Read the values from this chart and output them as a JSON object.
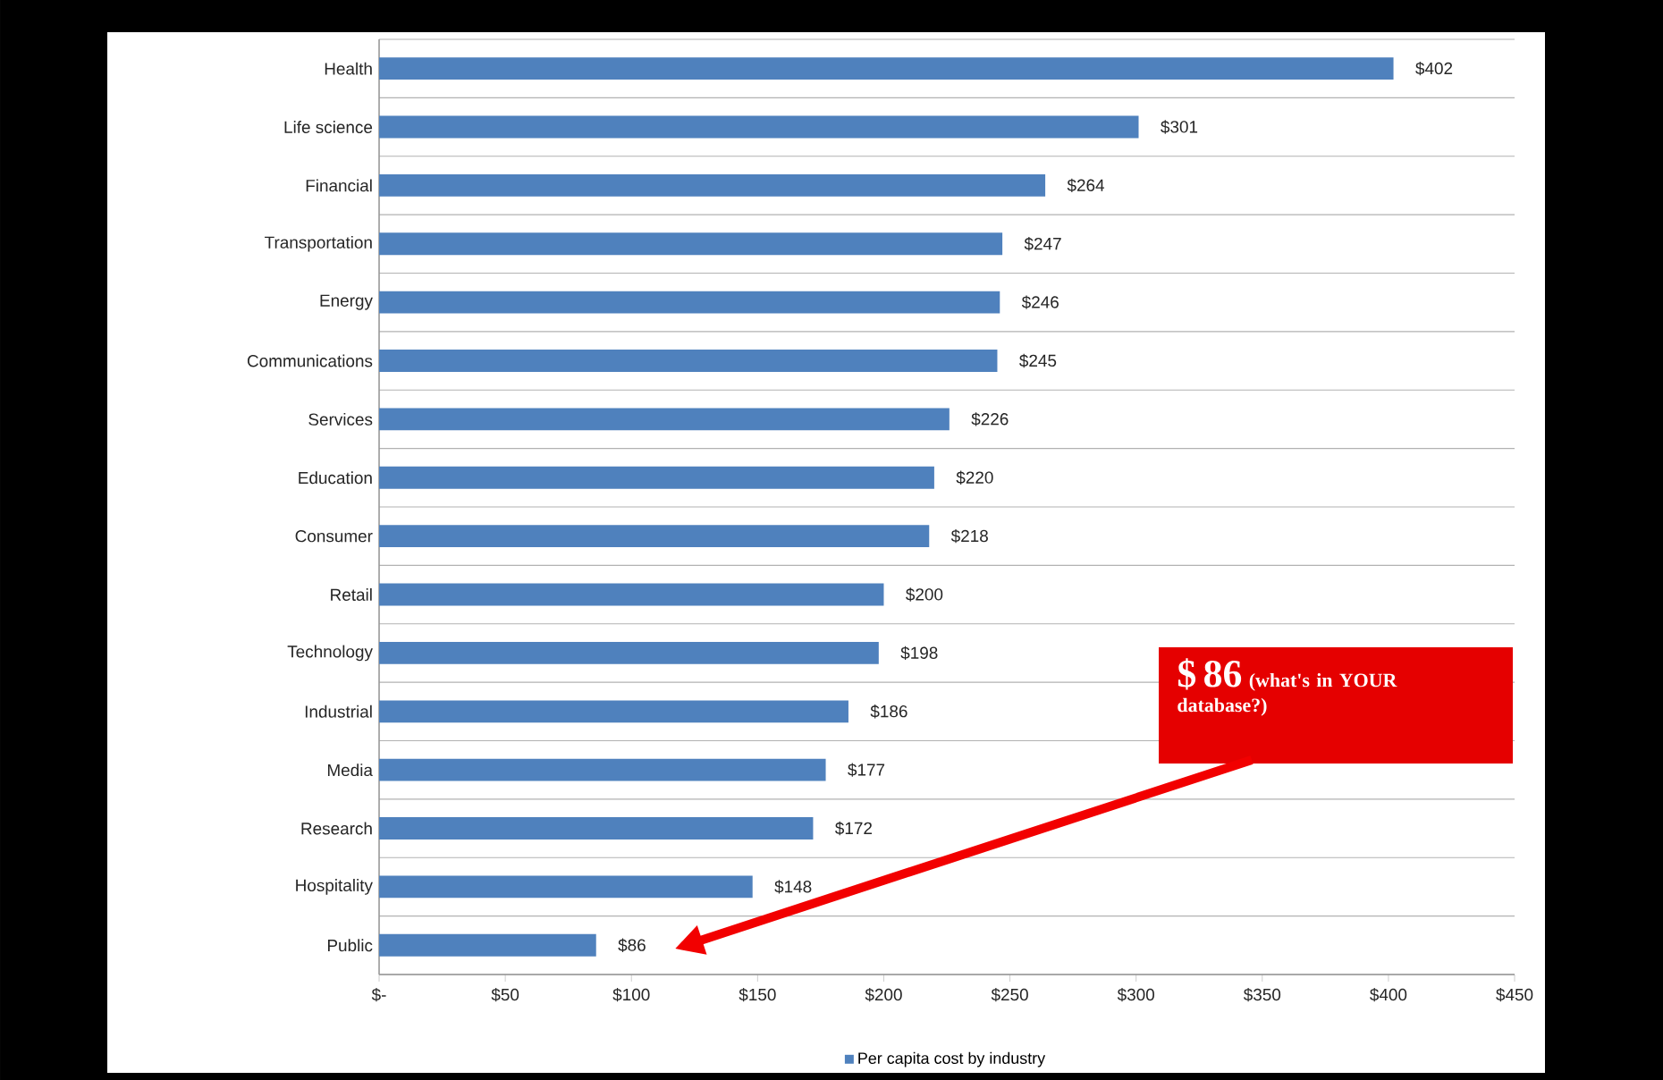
{
  "chart_data": {
    "type": "bar",
    "orientation": "horizontal",
    "categories": [
      "Health",
      "Life science",
      "Financial",
      "Transportation",
      "Energy",
      "Communications",
      "Services",
      "Education",
      "Consumer",
      "Retail",
      "Technology",
      "Industrial",
      "Media",
      "Research",
      "Hospitality",
      "Public"
    ],
    "series": [
      {
        "name": "Per capita cost by industry",
        "color": "#4f81bd",
        "values": [
          402,
          301,
          264,
          247,
          246,
          245,
          226,
          220,
          218,
          200,
          198,
          186,
          177,
          172,
          148,
          86
        ]
      }
    ],
    "value_labels": [
      "$402",
      "$301",
      "$264",
      "$247",
      "$246",
      "$245",
      "$226",
      "$220",
      "$218",
      "$200",
      "$198",
      "$186",
      "$177",
      "$172",
      "$148",
      "$86"
    ],
    "xlim": [
      0,
      450
    ],
    "xticks": [
      {
        "value": 0,
        "label": "$-"
      },
      {
        "value": 50,
        "label": "$50"
      },
      {
        "value": 100,
        "label": "$100"
      },
      {
        "value": 150,
        "label": "$150"
      },
      {
        "value": 200,
        "label": "$200"
      },
      {
        "value": 250,
        "label": "$250"
      },
      {
        "value": 300,
        "label": "$300"
      },
      {
        "value": 350,
        "label": "$350"
      },
      {
        "value": 400,
        "label": "$400"
      },
      {
        "value": 450,
        "label": "$450"
      }
    ],
    "grid": "y",
    "legend": "bottom",
    "annotations": [
      "$ 86",
      "(what's in YOUR database?)"
    ]
  }
}
